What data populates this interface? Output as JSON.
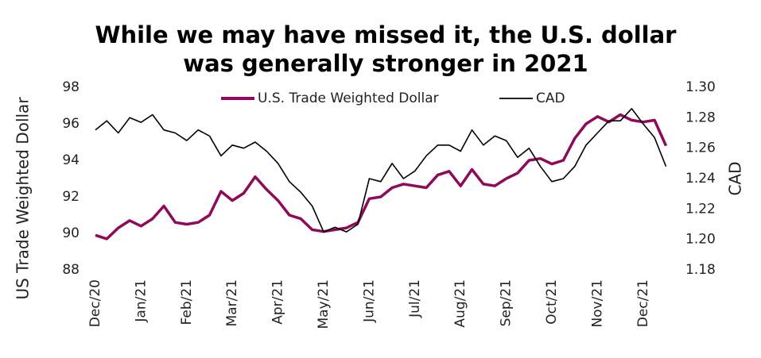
{
  "chart_data": {
    "type": "line",
    "title": "While we may have missed it, the U.S. dollar was generally stronger in 2021",
    "ylabel": "US Trade Weighted Dollar",
    "y2label": "CAD",
    "categories": [
      "Dec/20",
      null,
      null,
      null,
      "Jan/21",
      null,
      null,
      null,
      "Feb/21",
      null,
      null,
      null,
      "Mar/21",
      null,
      null,
      null,
      "Apr/21",
      null,
      null,
      null,
      "May/21",
      null,
      null,
      null,
      "Jun/21",
      null,
      null,
      null,
      "Jul/21",
      null,
      null,
      null,
      "Aug/21",
      null,
      null,
      null,
      "Sep/21",
      null,
      null,
      null,
      "Oct/21",
      null,
      null,
      null,
      "Nov/21",
      null,
      null,
      null,
      "Dec/21",
      null,
      null
    ],
    "series": [
      {
        "name": "U.S. Trade Weighted Dollar",
        "color": "#8e0a5a",
        "axis": "y",
        "values": [
          89.9,
          89.7,
          90.3,
          90.7,
          90.4,
          90.8,
          91.5,
          90.6,
          90.5,
          90.6,
          91.0,
          92.3,
          91.8,
          92.2,
          93.1,
          92.4,
          91.8,
          91.0,
          90.8,
          90.2,
          90.1,
          90.2,
          90.3,
          90.6,
          91.9,
          92.0,
          92.5,
          92.7,
          92.6,
          92.5,
          93.2,
          93.4,
          92.6,
          93.5,
          92.7,
          92.6,
          93.0,
          93.3,
          94.0,
          94.1,
          93.8,
          94.0,
          95.2,
          96.0,
          96.4,
          96.1,
          96.5,
          96.2,
          96.1,
          96.2,
          94.8
        ]
      },
      {
        "name": "CAD",
        "color": "#000000",
        "axis": "y2",
        "values": [
          1.272,
          1.278,
          1.27,
          1.28,
          1.277,
          1.282,
          1.272,
          1.27,
          1.265,
          1.272,
          1.268,
          1.255,
          1.262,
          1.26,
          1.264,
          1.258,
          1.25,
          1.238,
          1.231,
          1.222,
          1.205,
          1.208,
          1.205,
          1.21,
          1.24,
          1.238,
          1.25,
          1.24,
          1.245,
          1.255,
          1.262,
          1.262,
          1.258,
          1.272,
          1.262,
          1.268,
          1.265,
          1.254,
          1.26,
          1.248,
          1.238,
          1.24,
          1.248,
          1.262,
          1.27,
          1.278,
          1.278,
          1.286,
          1.276,
          1.267,
          1.248
        ]
      }
    ],
    "ylim": [
      88,
      98
    ],
    "yticks": [
      88,
      90,
      92,
      94,
      96,
      98
    ],
    "y2lim": [
      1.18,
      1.3
    ],
    "y2ticks": [
      1.18,
      {
        "value": 1.2,
        "label": "1.20"
      },
      1.22,
      1.24,
      1.26,
      1.28,
      {
        "value": 1.3,
        "label": "1.30"
      }
    ],
    "legend": "top"
  }
}
